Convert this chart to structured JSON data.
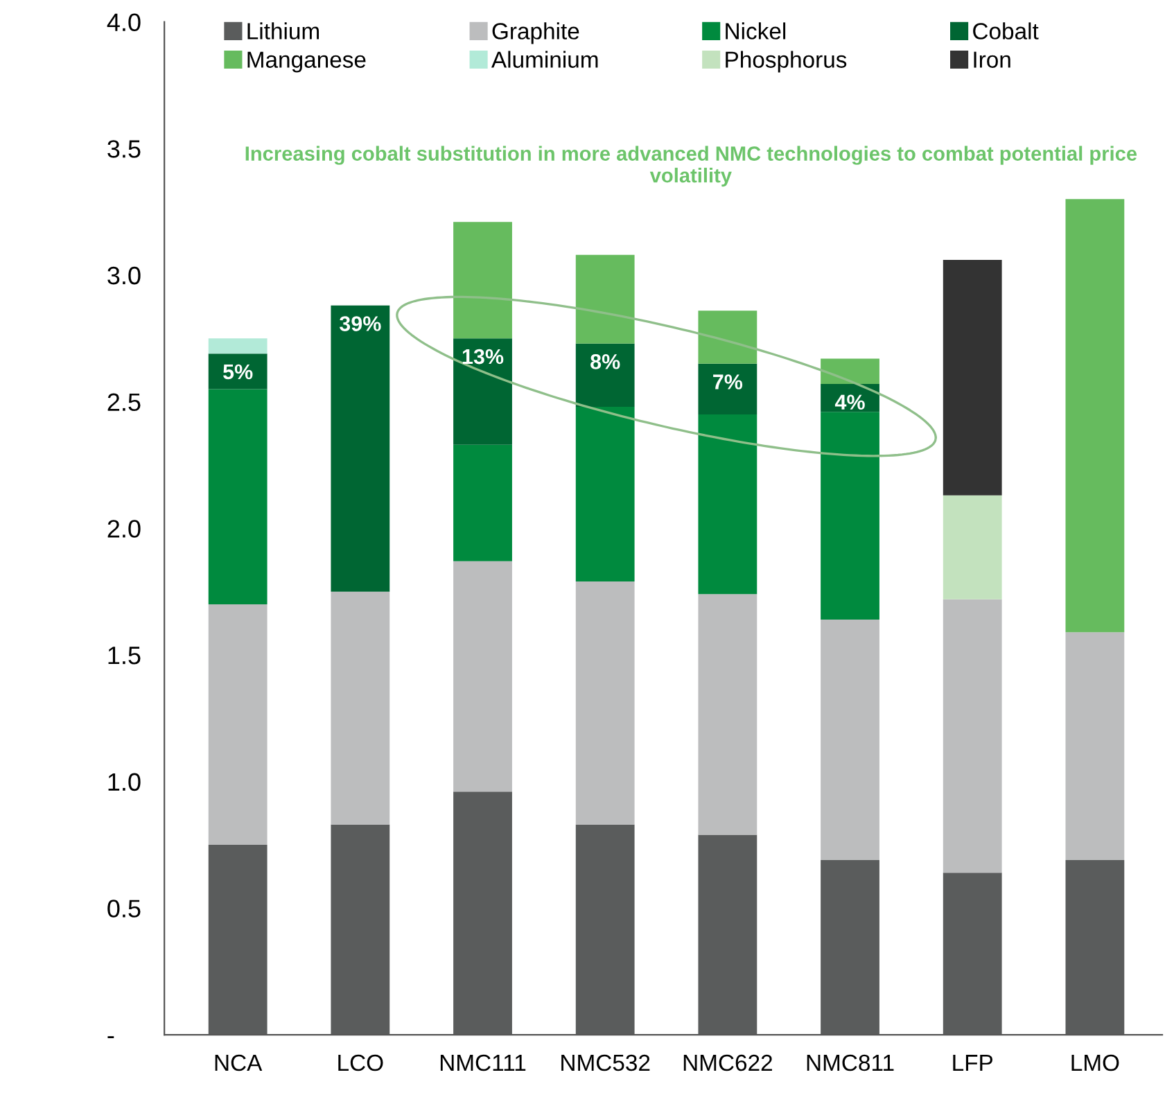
{
  "chart_data": {
    "type": "bar",
    "stacked": true,
    "categories": [
      "NCA",
      "LCO",
      "NMC111",
      "NMC532",
      "NMC622",
      "NMC811",
      "LFP",
      "LMO"
    ],
    "series": [
      {
        "name": "Lithium",
        "color": "#5a5c5c",
        "values": [
          0.75,
          0.83,
          0.96,
          0.83,
          0.79,
          0.69,
          0.64,
          0.69
        ]
      },
      {
        "name": "Graphite",
        "color": "#bcbdbe",
        "values": [
          0.95,
          0.92,
          0.91,
          0.96,
          0.95,
          0.95,
          1.08,
          0.9
        ]
      },
      {
        "name": "Nickel",
        "color": "#008a3e",
        "values": [
          0.85,
          null,
          0.46,
          0.69,
          0.71,
          0.82,
          null,
          null
        ]
      },
      {
        "name": "Cobalt",
        "color": "#006633",
        "values": [
          0.14,
          1.13,
          0.42,
          0.25,
          0.2,
          0.11,
          null,
          null
        ]
      },
      {
        "name": "Manganese",
        "color": "#66bb5e",
        "values": [
          null,
          null,
          0.46,
          0.35,
          0.21,
          0.1,
          null,
          1.71
        ]
      },
      {
        "name": "Aluminium",
        "color": "#b2ead8",
        "values": [
          0.06,
          null,
          null,
          null,
          null,
          null,
          null,
          null
        ]
      },
      {
        "name": "Phosphorus",
        "color": "#c3e2be",
        "values": [
          null,
          null,
          null,
          null,
          null,
          null,
          0.41,
          null
        ]
      },
      {
        "name": "Iron",
        "color": "#333333",
        "values": [
          null,
          null,
          null,
          null,
          null,
          null,
          0.93,
          null
        ]
      }
    ],
    "ylim": [
      0,
      4.0
    ],
    "yticks": [
      {
        "value": 0,
        "label": "-"
      },
      0.5,
      {
        "value": 1,
        "label": "1.0"
      },
      1.5,
      {
        "value": 2,
        "label": "2.0"
      },
      2.5,
      {
        "value": 3,
        "label": "3.0"
      },
      3.5,
      {
        "value": 4,
        "label": "4.0"
      }
    ],
    "annotations": [
      "Increasing cobalt substitution in more advanced NMC technologies to combat potential price volatility",
      {
        "text": "5%",
        "x": "NCA",
        "y": 2.69
      },
      {
        "text": "39%",
        "x": "LCO",
        "y": 2.88
      },
      {
        "text": "13%",
        "x": "NMC111",
        "y": 2.75
      },
      {
        "text": "8%",
        "x": "NMC532",
        "y": 2.73
      },
      {
        "text": "7%",
        "x": "NMC622",
        "y": 2.65
      },
      {
        "text": "4%",
        "x": "NMC811",
        "y": 2.57
      }
    ],
    "legend": "top",
    "grid": false
  }
}
